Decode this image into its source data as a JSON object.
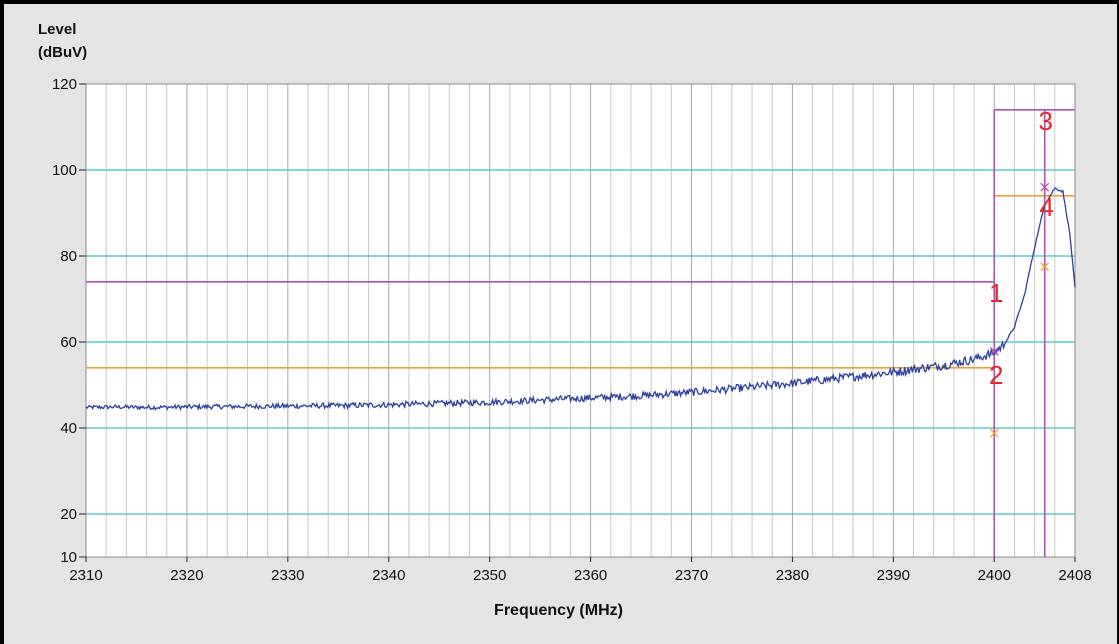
{
  "chart_data": {
    "type": "line",
    "ylabel_lines": [
      "Level",
      "(dBuV)"
    ],
    "xlabel": "Frequency (MHz)",
    "xlim": [
      2310,
      2408
    ],
    "ylim": [
      10,
      120
    ],
    "x_ticks": [
      2310,
      2320,
      2330,
      2340,
      2350,
      2360,
      2370,
      2380,
      2390,
      2400,
      2408
    ],
    "y_ticks": [
      10,
      20,
      40,
      60,
      80,
      100,
      120
    ],
    "y_gridlines": [
      20,
      40,
      60,
      80,
      100
    ],
    "x_minor_gridlines_step": 2,
    "grid": true,
    "series": [
      {
        "color": "#2b3f9e",
        "x": [
          2310,
          2313,
          2316,
          2320,
          2325,
          2330,
          2335,
          2340,
          2345,
          2350,
          2355,
          2360,
          2365,
          2370,
          2375,
          2380,
          2385,
          2390,
          2395,
          2398,
          2400,
          2401,
          2402,
          2403,
          2404,
          2405,
          2406,
          2406.8,
          2407.5,
          2408
        ],
        "y": [
          44.8,
          44.9,
          44.8,
          44.9,
          45.0,
          45.1,
          45.2,
          45.4,
          45.7,
          46.0,
          46.5,
          47.0,
          47.5,
          48.3,
          49.3,
          50.4,
          51.7,
          53.0,
          54.6,
          56.0,
          57.5,
          59.5,
          63.5,
          71.0,
          82.0,
          92.0,
          95.8,
          95.0,
          85.0,
          72.5
        ]
      }
    ],
    "limit_lines": [
      {
        "label": "1",
        "color": "#b04fb2",
        "y": 74,
        "x_start": 2310,
        "x_end": 2400
      },
      {
        "label": "2",
        "color": "#f0a030",
        "y": 54,
        "x_start": 2310,
        "x_end": 2400
      },
      {
        "label": "3",
        "color": "#b04fb2",
        "y": 114,
        "x_start": 2400,
        "x_end": 2408
      },
      {
        "label": "4",
        "color": "#f0a030",
        "y": 94,
        "x_start": 2400,
        "x_end": 2408
      }
    ],
    "vertical_lines": [
      {
        "x": 2400,
        "color": "#b04fb2"
      },
      {
        "x": 2405,
        "color": "#b04fb2"
      }
    ],
    "markers": [
      {
        "label": "1",
        "x": 2400,
        "y": 74
      },
      {
        "label": "2",
        "x": 2400,
        "y": 54
      },
      {
        "label": "3",
        "x": 2404.9,
        "y": 114
      },
      {
        "label": "4",
        "x": 2405,
        "y": 94
      }
    ],
    "measurement_points": [
      {
        "x": 2400,
        "y": 57.8,
        "color": "#b04fb2"
      },
      {
        "x": 2400,
        "y": 38.8,
        "color": "#f0a030"
      },
      {
        "x": 2405,
        "y": 96.0,
        "color": "#b04fb2"
      },
      {
        "x": 2405,
        "y": 77.5,
        "color": "#f0a030"
      }
    ]
  }
}
